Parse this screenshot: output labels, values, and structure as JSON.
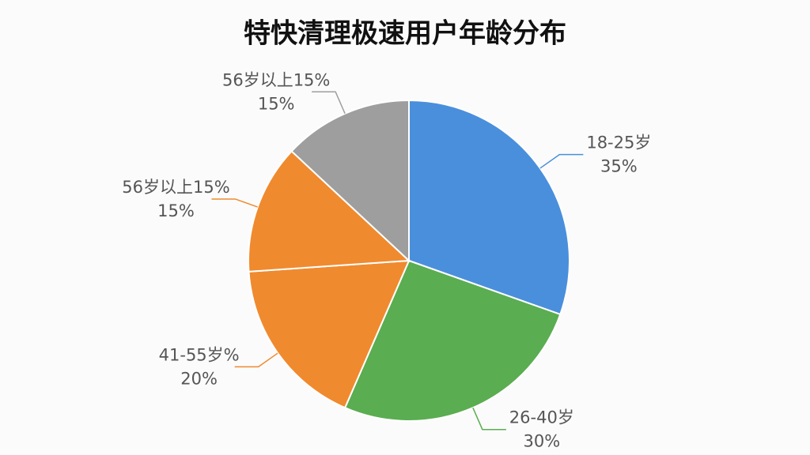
{
  "chart_data": {
    "type": "pie",
    "title": "特快清理极速用户年龄分布",
    "categories": [
      "18-25岁",
      "26-40岁",
      "41-55岁%",
      "56岁以上15%",
      "56岁以上15%"
    ],
    "values": [
      35,
      30,
      20,
      15,
      15
    ],
    "value_labels": [
      "35%",
      "30%",
      "20%",
      "15%",
      "15%"
    ],
    "colors": [
      "#4a8fdc",
      "#5aad50",
      "#f08a2e",
      "#f08a2e",
      "#9e9e9e"
    ]
  }
}
